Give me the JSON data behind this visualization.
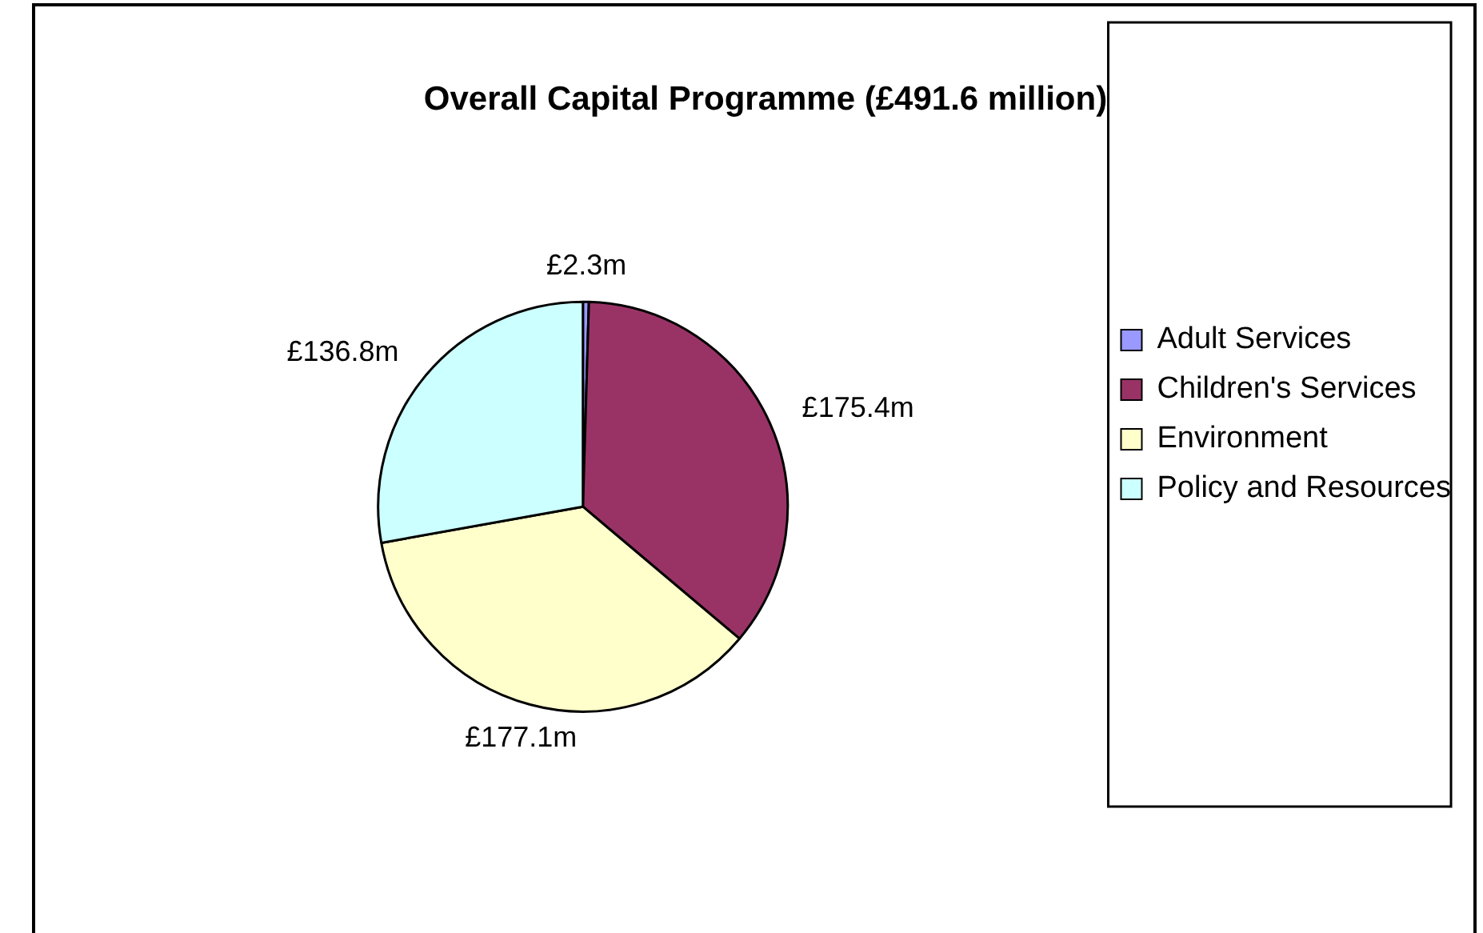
{
  "chart_data": {
    "type": "pie",
    "title": "Overall Capital Programme (£491.6 million)",
    "categories": [
      "Adult Services",
      "Children's Services",
      "Environment",
      "Policy and Resources"
    ],
    "values": [
      2.3,
      175.4,
      177.1,
      136.8
    ],
    "colors": [
      "#9999ff",
      "#993366",
      "#ffffcc",
      "#ccffff"
    ],
    "value_labels": [
      "£2.3m",
      "£175.4m",
      "£177.1m",
      "£136.8m"
    ],
    "legend": "right"
  }
}
